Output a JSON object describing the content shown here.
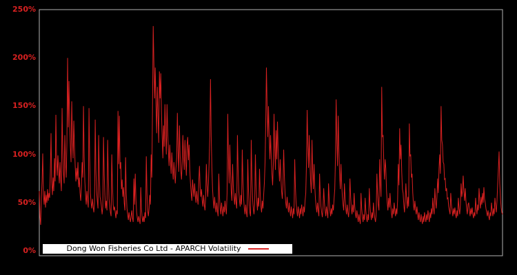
{
  "window": {
    "background_color": "#000000"
  },
  "colors": {
    "line": "#d92121",
    "tick_label": "#d92121",
    "frame": "#b3b3b3",
    "legend_bg": "#ffffff",
    "legend_text": "#000000"
  },
  "legend": {
    "label": "Dong Won Fisheries Co Ltd - APARCH Volatility",
    "swatch": "red-line-sample",
    "position": "bottom-left"
  },
  "y_axis": {
    "tick_labels": [
      "0%",
      "50%",
      "100%",
      "150%",
      "200%",
      "250%"
    ],
    "tick_values": [
      0,
      50,
      100,
      150,
      200,
      250
    ]
  },
  "x_axis": {
    "tick_labels": []
  },
  "chart_data": {
    "type": "line",
    "title": "",
    "xlabel": "",
    "ylabel": "",
    "unit": "%",
    "ylim": [
      0,
      250
    ],
    "grid": false,
    "legend_position": "bottom-left",
    "series": [
      {
        "name": "Dong Won Fisheries Co Ltd - APARCH Volatility",
        "color": "#d92121",
        "values": [
          62,
          35,
          27,
          55,
          72,
          101,
          58,
          48,
          62,
          45,
          58,
          50,
          64,
          52,
          60,
          55,
          82,
          122,
          72,
          58,
          76,
          62,
          96,
          72,
          141,
          96,
          78,
          99,
          84,
          70,
          92,
          74,
          62,
          148,
          104,
          82,
          70,
          120,
          92,
          76,
          112,
          200,
          128,
          176,
          132,
          108,
          92,
          155,
          118,
          96,
          135,
          108,
          88,
          72,
          86,
          74,
          92,
          66,
          76,
          60,
          52,
          66,
          92,
          76,
          150,
          98,
          72,
          58,
          48,
          62,
          52,
          45,
          148,
          96,
          60,
          50,
          44,
          54,
          46,
          40,
          50,
          136,
          84,
          62,
          52,
          44,
          120,
          78,
          56,
          52,
          46,
          38,
          46,
          118,
          80,
          58,
          44,
          52,
          42,
          115,
          76,
          54,
          46,
          40,
          36,
          100,
          68,
          48,
          42,
          46,
          40,
          34,
          42,
          38,
          145,
          90,
          140,
          85,
          92,
          64,
          74,
          56,
          66,
          50,
          42,
          97,
          60,
          44,
          38,
          32,
          40,
          34,
          30,
          36,
          42,
          34,
          30,
          75,
          48,
          80,
          54,
          40,
          34,
          30,
          36,
          32,
          28,
          66,
          44,
          34,
          30,
          36,
          30,
          40,
          34,
          98,
          60,
          42,
          36,
          44,
          58,
          48,
          100,
          76,
          150,
          233,
          195,
          158,
          190,
          152,
          122,
          170,
          140,
          112,
          186,
          158,
          184,
          142,
          118,
          96,
          130,
          108,
          152,
          122,
          100,
          152,
          124,
          104,
          88,
          110,
          94,
          80,
          102,
          86,
          74,
          92,
          80,
          70,
          86,
          96,
          143,
          104,
          82,
          130,
          100,
          84,
          74,
          92,
          120,
          98,
          84,
          115,
          94,
          78,
          110,
          118,
          94,
          110,
          84,
          70,
          60,
          52,
          74,
          64,
          56,
          70,
          58,
          50,
          62,
          54,
          48,
          72,
          88,
          66,
          56,
          64,
          52,
          46,
          58,
          48,
          42,
          56,
          90,
          68,
          56,
          70,
          92,
          120,
          178,
          120,
          86,
          64,
          52,
          44,
          56,
          46,
          40,
          50,
          42,
          36,
          80,
          56,
          44,
          38,
          50,
          42,
          36,
          46,
          40,
          52,
          44,
          38,
          60,
          142,
          96,
          70,
          110,
          82,
          62,
          52,
          90,
          68,
          56,
          48,
          60,
          50,
          44,
          120,
          84,
          62,
          52,
          46,
          58,
          48,
          105,
          72,
          54,
          44,
          38,
          48,
          40,
          35,
          95,
          64,
          48,
          40,
          36,
          115,
          76,
          54,
          44,
          38,
          48,
          100,
          68,
          52,
          42,
          55,
          46,
          85,
          60,
          46,
          40,
          52,
          44,
          58,
          70,
          92,
          130,
          190,
          150,
          118,
          150,
          118,
          95,
          120,
          98,
          80,
          68,
          90,
          142,
          108,
          84,
          125,
          95,
          134,
          104,
          86,
          72,
          95,
          76,
          62,
          54,
          70,
          105,
          78,
          60,
          50,
          44,
          56,
          46,
          40,
          50,
          42,
          36,
          46,
          40,
          34,
          44,
          38,
          95,
          66,
          50,
          42,
          36,
          46,
          40,
          34,
          44,
          38,
          48,
          42,
          36,
          46,
          40,
          52,
          60,
          90,
          146,
          110,
          86,
          120,
          92,
          72,
          60,
          115,
          84,
          64,
          90,
          68,
          54,
          46,
          40,
          50,
          42,
          36,
          80,
          58,
          46,
          40,
          35,
          44,
          65,
          50,
          42,
          36,
          46,
          40,
          34,
          70,
          52,
          42,
          36,
          44,
          38,
          48,
          42,
          54,
          64,
          96,
          157,
          116,
          88,
          140,
          104,
          80,
          64,
          90,
          70,
          56,
          48,
          42,
          70,
          54,
          44,
          38,
          48,
          40,
          35,
          45,
          75,
          56,
          44,
          38,
          48,
          40,
          60,
          46,
          38,
          34,
          42,
          36,
          30,
          38,
          32,
          28,
          60,
          44,
          36,
          30,
          38,
          32,
          55,
          42,
          34,
          30,
          38,
          32,
          65,
          48,
          38,
          32,
          40,
          34,
          50,
          40,
          34,
          30,
          38,
          80,
          60,
          48,
          42,
          95,
          70,
          56,
          170,
          118,
          120,
          92,
          74,
          95,
          85,
          62,
          50,
          42,
          55,
          45,
          60,
          48,
          40,
          34,
          44,
          38,
          50,
          42,
          36,
          44,
          38,
          52,
          90,
          68,
          127,
          95,
          110,
          82,
          64,
          60,
          48,
          40,
          52,
          70,
          54,
          44,
          56,
          46,
          132,
          98,
          100,
          76,
          80,
          60,
          48,
          42,
          52,
          44,
          38,
          46,
          38,
          32,
          40,
          34,
          30,
          38,
          32,
          28,
          36,
          30,
          40,
          34,
          30,
          38,
          32,
          42,
          36,
          30,
          40,
          34,
          44,
          38,
          55,
          44,
          38,
          65,
          52,
          44,
          56,
          75,
          60,
          85,
          100,
          80,
          150,
          115,
          110,
          92,
          90,
          74,
          75,
          62,
          65,
          54,
          55,
          46,
          42,
          38,
          60,
          48,
          42,
          36,
          44,
          38,
          45,
          38,
          34,
          42,
          36,
          55,
          44,
          38,
          48,
          70,
          56,
          62,
          78,
          62,
          52,
          65,
          52,
          44,
          38,
          48,
          50,
          42,
          36,
          44,
          38,
          45,
          38,
          34,
          40,
          36,
          55,
          44,
          38,
          48,
          42,
          65,
          52,
          44,
          56,
          48,
          60,
          50,
          66,
          54,
          50,
          44,
          40,
          36,
          42,
          36,
          32,
          40,
          36,
          50,
          42,
          36,
          44,
          38,
          55,
          46,
          40,
          52,
          70,
          85,
          103,
          70,
          55,
          45,
          40,
          38
        ]
      }
    ]
  }
}
